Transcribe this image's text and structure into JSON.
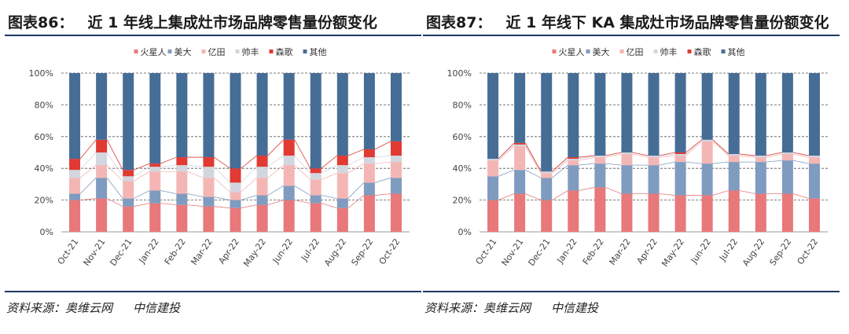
{
  "chart_data": [
    {
      "type": "stacked-bar",
      "figure_label": "图表86：",
      "title": "近 1 年线上集成灶市场品牌零售量份额变化",
      "source_label": "资料来源：奥维云网",
      "source_org": "中信建投",
      "categories": [
        "Oct-21",
        "Nov-21",
        "Dec-21",
        "Jan-22",
        "Feb-22",
        "Mar-22",
        "Apr-22",
        "May-22",
        "Jun-22",
        "Jul-22",
        "Aug-22",
        "Sep-22",
        "Oct-22"
      ],
      "y_ticks": [
        "0%",
        "20%",
        "40%",
        "60%",
        "80%",
        "100%"
      ],
      "ylim": [
        0,
        100
      ],
      "series": [
        {
          "name": "火星人",
          "color": "#e8787a",
          "values": [
            20,
            21,
            16,
            18,
            17,
            16,
            15,
            17,
            20,
            18,
            15,
            23,
            24
          ]
        },
        {
          "name": "美大",
          "color": "#7f9bbf",
          "values": [
            4,
            13,
            5,
            8,
            7,
            6,
            5,
            6,
            9,
            5,
            6,
            8,
            10
          ]
        },
        {
          "name": "亿田",
          "color": "#f4b6b4",
          "values": [
            10,
            8,
            11,
            12,
            14,
            12,
            5,
            11,
            13,
            10,
            16,
            12,
            10
          ]
        },
        {
          "name": "帅丰",
          "color": "#d2d6de",
          "values": [
            5,
            8,
            3,
            3,
            4,
            7,
            6,
            7,
            6,
            4,
            5,
            4,
            4
          ]
        },
        {
          "name": "森歌",
          "color": "#e03a33",
          "values": [
            7,
            8,
            4,
            2,
            5,
            6,
            9,
            7,
            10,
            3,
            6,
            5,
            9
          ]
        },
        {
          "name": "其他",
          "color": "#466d96",
          "values": [
            54,
            42,
            61,
            57,
            53,
            53,
            60,
            52,
            42,
            60,
            52,
            48,
            43
          ]
        }
      ]
    },
    {
      "type": "stacked-bar",
      "figure_label": "图表87：",
      "title": "近 1 年线下 KA 集成灶市场品牌零售量份额变化",
      "source_label": "资料来源：奥维云网",
      "source_org": "中信建投",
      "categories": [
        "Oct-21",
        "Nov-21",
        "Dec-21",
        "Jan-22",
        "Feb-22",
        "Mar-22",
        "Apr-22",
        "May-22",
        "Jun-22",
        "Jul-22",
        "Aug-22",
        "Sep-22",
        "Oct-22"
      ],
      "y_ticks": [
        "0%",
        "20%",
        "40%",
        "60%",
        "80%",
        "100%"
      ],
      "ylim": [
        0,
        100
      ],
      "series": [
        {
          "name": "火星人",
          "color": "#e8787a",
          "values": [
            20,
            24,
            20,
            26,
            28,
            24,
            24,
            23,
            23,
            26,
            24,
            24,
            21
          ]
        },
        {
          "name": "美大",
          "color": "#7f9bbf",
          "values": [
            15,
            15,
            14,
            16,
            15,
            18,
            18,
            21,
            20,
            18,
            20,
            21,
            22
          ]
        },
        {
          "name": "亿田",
          "color": "#f4b6b4",
          "values": [
            10,
            15,
            3,
            3,
            4,
            7,
            5,
            4,
            14,
            4,
            3,
            4,
            4
          ]
        },
        {
          "name": "帅丰",
          "color": "#d2d6de",
          "values": [
            1,
            1,
            1,
            1,
            1,
            1,
            1,
            1,
            1,
            1,
            1,
            1,
            1
          ]
        },
        {
          "name": "森歌",
          "color": "#e03a33",
          "values": [
            0,
            1,
            0,
            1,
            0,
            0,
            0,
            1,
            0,
            0,
            0,
            0,
            0
          ]
        },
        {
          "name": "其他",
          "color": "#466d96",
          "values": [
            54,
            44,
            62,
            53,
            52,
            50,
            52,
            50,
            42,
            51,
            52,
            50,
            52
          ]
        }
      ]
    }
  ]
}
